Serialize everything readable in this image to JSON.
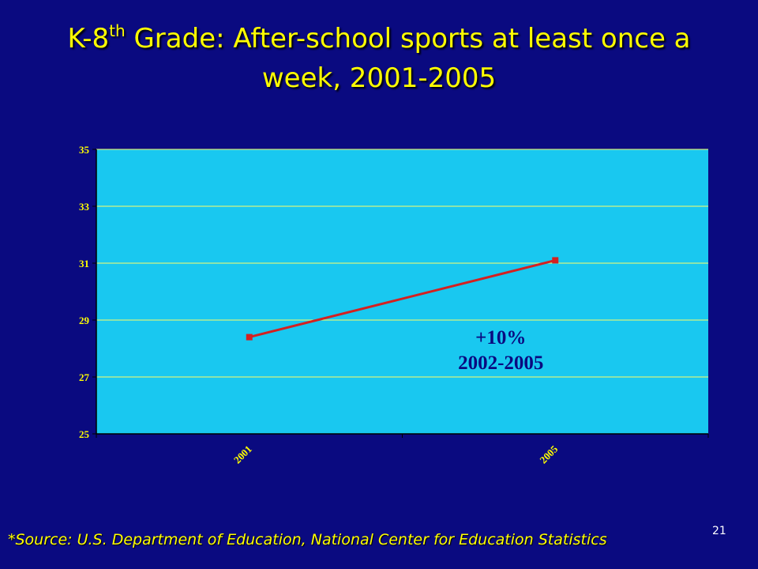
{
  "title": {
    "prefix": "K-8",
    "superscript": "th",
    "rest": " Grade: After-school sports at least once a week, 2001-2005"
  },
  "source": "*Source: U.S. Department of Education, National Center for Education Statistics",
  "page_number": "21",
  "colors": {
    "background": "#0a0a80",
    "plot_area": "#19c8f0",
    "gridline": "#ffff66",
    "series": "#d42020",
    "title": "#ffff00"
  },
  "chart_data": {
    "type": "line",
    "title": "",
    "xlabel": "",
    "ylabel": "",
    "categories": [
      "2001",
      "2005"
    ],
    "series": [
      {
        "values": [
          28.4,
          31.1
        ]
      }
    ],
    "ylim": [
      25,
      35
    ],
    "yticks": [
      25,
      27,
      29,
      31,
      33,
      35
    ],
    "grid": true,
    "legend": "none",
    "annotations": [
      "+10%",
      "2002-2005"
    ]
  }
}
